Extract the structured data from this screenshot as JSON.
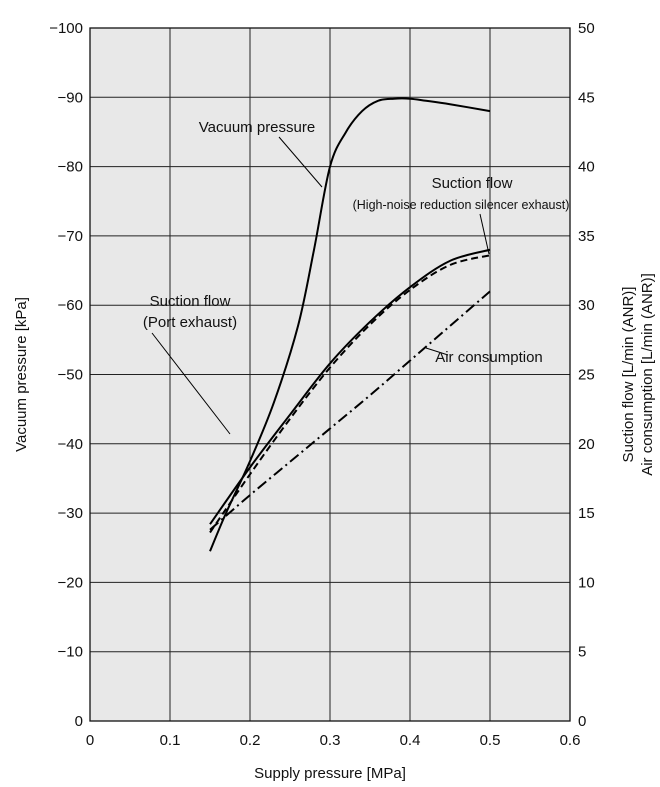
{
  "chart_data": {
    "type": "line",
    "title": "",
    "xlabel": "Supply pressure [MPa]",
    "ylabel": "Vacuum pressure [kPa]",
    "y2label_line1": "Suction flow [L/min (ANR)]",
    "y2label_line2": "Air consumption [L/min (ANR)]",
    "xlim": [
      0,
      0.6
    ],
    "ylim": [
      0,
      -100
    ],
    "y2lim": [
      0,
      50
    ],
    "x_ticks": [
      "0",
      "0.1",
      "0.2",
      "0.3",
      "0.4",
      "0.5",
      "0.6"
    ],
    "y_ticks": [
      "0",
      "−10",
      "−20",
      "−30",
      "−40",
      "−50",
      "−60",
      "−70",
      "−80",
      "−90",
      "−100"
    ],
    "y2_ticks": [
      "0",
      "5",
      "10",
      "15",
      "20",
      "25",
      "30",
      "35",
      "40",
      "45",
      "50"
    ],
    "grid": true,
    "background": "#e8e8e8",
    "series": [
      {
        "name": "Vacuum pressure",
        "axis": "left",
        "style": "solid",
        "x": [
          0.15,
          0.17,
          0.2,
          0.23,
          0.26,
          0.28,
          0.3,
          0.32,
          0.34,
          0.36,
          0.38,
          0.4,
          0.42,
          0.45,
          0.5
        ],
        "y": [
          -24.5,
          -30,
          -37.5,
          -46,
          -57,
          -68,
          -80,
          -85,
          -88,
          -89.5,
          -89.8,
          -89.8,
          -89.5,
          -89,
          -88
        ]
      },
      {
        "name": "Suction flow (Port exhaust)",
        "axis": "right",
        "style": "solid",
        "x": [
          0.15,
          0.2,
          0.25,
          0.3,
          0.35,
          0.4,
          0.45,
          0.5
        ],
        "y": [
          14.2,
          18.3,
          22.1,
          25.8,
          28.8,
          31.3,
          33.2,
          34.0
        ]
      },
      {
        "name": "Suction flow (High-noise reduction silencer exhaust)",
        "axis": "right",
        "style": "dashed",
        "x": [
          0.15,
          0.2,
          0.25,
          0.3,
          0.35,
          0.4,
          0.45,
          0.5
        ],
        "y": [
          13.6,
          17.8,
          21.8,
          25.5,
          28.6,
          31.1,
          32.9,
          33.6
        ]
      },
      {
        "name": "Air consumption",
        "axis": "right",
        "style": "dash-dot",
        "x": [
          0.15,
          0.2,
          0.25,
          0.3,
          0.35,
          0.4,
          0.45,
          0.5
        ],
        "y": [
          13.8,
          16.3,
          18.7,
          21.1,
          23.5,
          26.0,
          28.5,
          31.0
        ]
      }
    ],
    "annotations": [
      {
        "id": "vacuum",
        "lines": [
          "Vacuum pressure"
        ]
      },
      {
        "id": "suction-silencer",
        "lines": [
          "Suction flow",
          "(High-noise reduction silencer exhaust)"
        ]
      },
      {
        "id": "suction-port",
        "lines": [
          "Suction flow",
          "(Port exhaust)"
        ]
      },
      {
        "id": "air",
        "lines": [
          "Air consumption"
        ]
      }
    ]
  }
}
